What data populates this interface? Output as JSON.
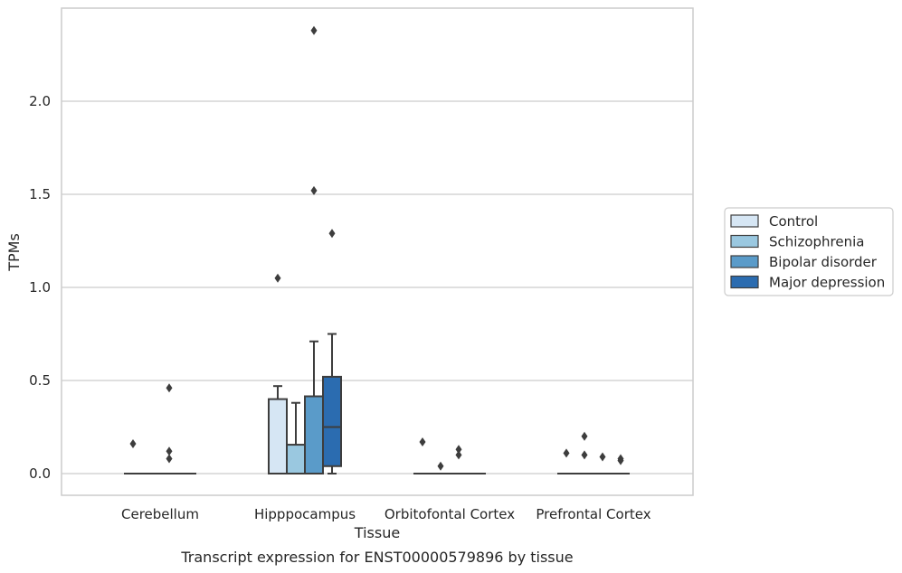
{
  "chart_data": {
    "type": "boxplot",
    "caption": "Transcript expression for ENST00000579896 by tissue",
    "xlabel": "Tissue",
    "ylabel": "TPMs",
    "ylim": [
      -0.12,
      2.5
    ],
    "yticks": [
      0.0,
      0.5,
      1.0,
      1.5,
      2.0
    ],
    "ytick_labels": [
      "0.0",
      "0.5",
      "1.0",
      "1.5",
      "2.0"
    ],
    "grid": "horizontal",
    "legend_position": "right",
    "categories": [
      "Cerebellum",
      "Hipppocampus",
      "Orbitofontal Cortex",
      "Prefrontal Cortex"
    ],
    "series": [
      {
        "name": "Control",
        "color": "#d6e6f4",
        "boxes": [
          {
            "q1": 0,
            "median": 0,
            "q3": 0,
            "whislo": 0,
            "whishi": 0,
            "fliers": [
              0.16
            ]
          },
          {
            "q1": 0,
            "median": 0,
            "q3": 0.4,
            "whislo": 0,
            "whishi": 0.47,
            "fliers": [
              1.05
            ]
          },
          {
            "q1": 0,
            "median": 0,
            "q3": 0,
            "whislo": 0,
            "whishi": 0,
            "fliers": [
              0.17
            ]
          },
          {
            "q1": 0,
            "median": 0,
            "q3": 0,
            "whislo": 0,
            "whishi": 0,
            "fliers": [
              0.11
            ]
          }
        ]
      },
      {
        "name": "Schizophrenia",
        "color": "#9ac8e0",
        "boxes": [
          {
            "q1": 0,
            "median": 0,
            "q3": 0,
            "whislo": 0,
            "whishi": 0,
            "fliers": []
          },
          {
            "q1": 0,
            "median": 0,
            "q3": 0.155,
            "whislo": 0,
            "whishi": 0.38,
            "fliers": []
          },
          {
            "q1": 0,
            "median": 0,
            "q3": 0,
            "whislo": 0,
            "whishi": 0,
            "fliers": [
              0.04
            ]
          },
          {
            "q1": 0,
            "median": 0,
            "q3": 0,
            "whislo": 0,
            "whishi": 0,
            "fliers": [
              0.2,
              0.1
            ]
          }
        ]
      },
      {
        "name": "Bipolar disorder",
        "color": "#5a9bc9",
        "boxes": [
          {
            "q1": 0,
            "median": 0,
            "q3": 0,
            "whislo": 0,
            "whishi": 0,
            "fliers": [
              0.46,
              0.12,
              0.08
            ]
          },
          {
            "q1": 0,
            "median": 0,
            "q3": 0.415,
            "whislo": 0,
            "whishi": 0.71,
            "fliers": [
              2.38,
              1.52
            ]
          },
          {
            "q1": 0,
            "median": 0,
            "q3": 0,
            "whislo": 0,
            "whishi": 0,
            "fliers": [
              0.13,
              0.1
            ]
          },
          {
            "q1": 0,
            "median": 0,
            "q3": 0,
            "whislo": 0,
            "whishi": 0,
            "fliers": [
              0.09
            ]
          }
        ]
      },
      {
        "name": "Major depression",
        "color": "#2b6cb0",
        "boxes": [
          {
            "q1": 0,
            "median": 0,
            "q3": 0,
            "whislo": 0,
            "whishi": 0,
            "fliers": []
          },
          {
            "q1": 0.04,
            "median": 0.25,
            "q3": 0.52,
            "whislo": 0,
            "whishi": 0.75,
            "fliers": [
              1.29
            ]
          },
          {
            "q1": 0,
            "median": 0,
            "q3": 0,
            "whislo": 0,
            "whishi": 0,
            "fliers": []
          },
          {
            "q1": 0,
            "median": 0,
            "q3": 0,
            "whislo": 0,
            "whishi": 0,
            "fliers": [
              0.08,
              0.07
            ]
          }
        ]
      }
    ]
  }
}
